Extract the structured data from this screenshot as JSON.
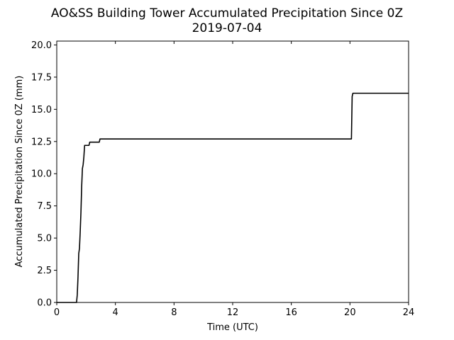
{
  "chart_data": {
    "type": "line",
    "title": "AO&SS Building Tower Accumulated Precipitation Since 0Z",
    "subtitle": "2019-07-04",
    "xlabel": "Time (UTC)",
    "ylabel": "Accumulated Precipitation Since 0Z (mm)",
    "xlim": [
      0,
      24
    ],
    "ylim": [
      0,
      20.3
    ],
    "xticks": [
      0,
      4,
      8,
      12,
      16,
      20,
      24
    ],
    "xtick_labels": [
      "0",
      "4",
      "8",
      "12",
      "16",
      "20",
      "24"
    ],
    "yticks": [
      0,
      2.5,
      5,
      7.5,
      10,
      12.5,
      15,
      17.5,
      20
    ],
    "ytick_labels": [
      "0.0",
      "2.5",
      "5.0",
      "7.5",
      "10.0",
      "12.5",
      "15.0",
      "17.5",
      "20.0"
    ],
    "grid": false,
    "line_color": "#000000",
    "series": [
      {
        "x": [
          0,
          1.35,
          1.4,
          1.45,
          1.5,
          1.55,
          1.6,
          1.65,
          1.7,
          1.75,
          1.8,
          1.85,
          1.9,
          1.95,
          2.0,
          2.05,
          2.1,
          2.2,
          2.25,
          2.3,
          2.9,
          2.95,
          3.0,
          20.1,
          20.15,
          20.2,
          24
        ],
        "y": [
          0,
          0,
          0.6,
          2.0,
          3.8,
          4.2,
          5.5,
          7.0,
          9.0,
          10.4,
          10.7,
          11.3,
          12.2,
          12.2,
          12.2,
          12.2,
          12.2,
          12.2,
          12.45,
          12.45,
          12.45,
          12.7,
          12.7,
          12.7,
          16.0,
          16.25,
          16.25
        ]
      }
    ]
  }
}
